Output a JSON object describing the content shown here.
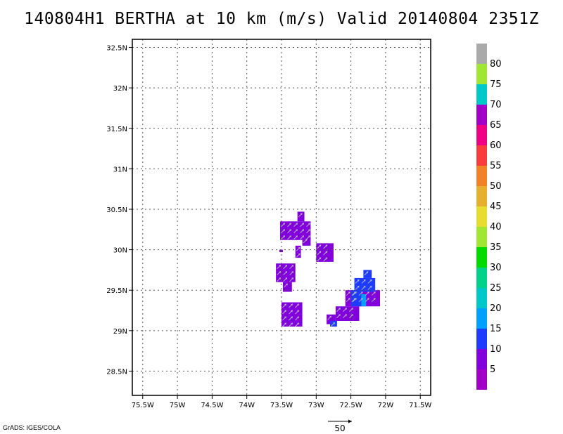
{
  "title": "140804H1 BERTHA at 10 km (m/s) Valid 20140804 2351Z",
  "footer": "GrADS: IGES/COLA",
  "chart_data": {
    "type": "heatmap",
    "xlim": [
      -75.65,
      -71.35
    ],
    "ylim": [
      28.2,
      32.6
    ],
    "x_ticks": [
      {
        "value": -75.5,
        "label": "75.5W"
      },
      {
        "value": -75,
        "label": "75W"
      },
      {
        "value": -74.5,
        "label": "74.5W"
      },
      {
        "value": -74,
        "label": "74W"
      },
      {
        "value": -73.5,
        "label": "73.5W"
      },
      {
        "value": -73,
        "label": "73W"
      },
      {
        "value": -72.5,
        "label": "72.5W"
      },
      {
        "value": -72,
        "label": "72W"
      },
      {
        "value": -71.5,
        "label": "71.5W"
      }
    ],
    "y_ticks": [
      {
        "value": 28.5,
        "label": "28.5N"
      },
      {
        "value": 29,
        "label": "29N"
      },
      {
        "value": 29.5,
        "label": "29.5N"
      },
      {
        "value": 30,
        "label": "30N"
      },
      {
        "value": 30.5,
        "label": "30.5N"
      },
      {
        "value": 31,
        "label": "31N"
      },
      {
        "value": 31.5,
        "label": "31.5N"
      },
      {
        "value": 32,
        "label": "32N"
      },
      {
        "value": 32.5,
        "label": "32.5N"
      }
    ],
    "grid": true,
    "colorbar": {
      "placement": "right",
      "colors": [
        "#a000c8",
        "#8200dc",
        "#1e3cff",
        "#00a0ff",
        "#00c8c8",
        "#00d28c",
        "#00dc00",
        "#a0e632",
        "#e6dc32",
        "#e6af2d",
        "#f08228",
        "#fa3c3c",
        "#f00082",
        "#a000c8",
        "#00c8c8",
        "#a0e632",
        "#aaaaaa"
      ],
      "labels": [
        "5",
        "10",
        "15",
        "20",
        "25",
        "30",
        "35",
        "40",
        "45",
        "50",
        "55",
        "60",
        "65",
        "70",
        "75",
        "80"
      ]
    },
    "wind_field": {
      "units": "m/s",
      "reference_vector": "50",
      "regions": [
        {
          "lon_min": -73.52,
          "lon_max": -73.08,
          "lat_min": 30.12,
          "lat_max": 30.35,
          "value": 6
        },
        {
          "lon_min": -73.27,
          "lon_max": -73.17,
          "lat_min": 30.35,
          "lat_max": 30.47,
          "value": 6
        },
        {
          "lon_min": -73.2,
          "lon_max": -73.08,
          "lat_min": 30.05,
          "lat_max": 30.15,
          "value": 6
        },
        {
          "lon_min": -73.3,
          "lon_max": -73.22,
          "lat_min": 29.9,
          "lat_max": 30.05,
          "value": 6
        },
        {
          "lon_min": -73.0,
          "lon_max": -72.75,
          "lat_min": 29.85,
          "lat_max": 30.08,
          "value": 6
        },
        {
          "lon_min": -73.53,
          "lon_max": -73.48,
          "lat_min": 29.97,
          "lat_max": 30.0,
          "value": 6
        },
        {
          "lon_min": -73.58,
          "lon_max": -73.3,
          "lat_min": 29.6,
          "lat_max": 29.83,
          "value": 6
        },
        {
          "lon_min": -73.48,
          "lon_max": -73.35,
          "lat_min": 29.48,
          "lat_max": 29.6,
          "value": 6
        },
        {
          "lon_min": -73.5,
          "lon_max": -73.2,
          "lat_min": 29.05,
          "lat_max": 29.35,
          "value": 6
        },
        {
          "lon_min": -72.58,
          "lon_max": -72.08,
          "lat_min": 29.3,
          "lat_max": 29.5,
          "value": 6
        },
        {
          "lon_min": -72.72,
          "lon_max": -72.38,
          "lat_min": 29.12,
          "lat_max": 29.3,
          "value": 6
        },
        {
          "lon_min": -72.85,
          "lon_max": -72.72,
          "lat_min": 29.08,
          "lat_max": 29.2,
          "value": 6
        },
        {
          "lon_min": -72.45,
          "lon_max": -72.15,
          "lat_min": 29.48,
          "lat_max": 29.65,
          "value": 11
        },
        {
          "lon_min": -72.32,
          "lon_max": -72.2,
          "lat_min": 29.65,
          "lat_max": 29.75,
          "value": 11
        },
        {
          "lon_min": -72.5,
          "lon_max": -72.35,
          "lat_min": 29.3,
          "lat_max": 29.5,
          "value": 11
        },
        {
          "lon_min": -72.8,
          "lon_max": -72.7,
          "lat_min": 29.05,
          "lat_max": 29.12,
          "value": 11
        },
        {
          "lon_min": -72.35,
          "lon_max": -72.28,
          "lat_min": 29.3,
          "lat_max": 29.45,
          "value": 16
        }
      ]
    }
  }
}
